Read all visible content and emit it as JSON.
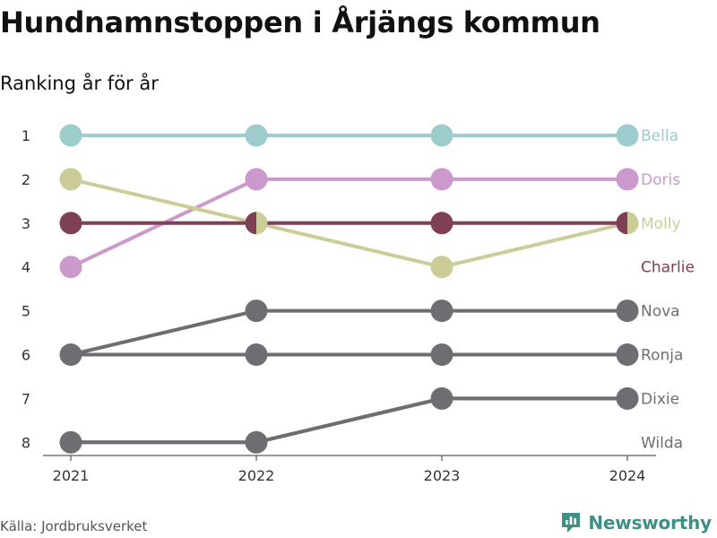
{
  "title": "Hundnamnstoppen i Årjängs kommun",
  "subtitle": "Ranking år för år",
  "source": "Källa: Jordbruksverket",
  "brand": {
    "name": "Newsworthy",
    "icon": "bar-chart-logo-icon",
    "color": "#3f8f86"
  },
  "chart_data": {
    "type": "line",
    "title": "Hundnamnstoppen i Årjängs kommun",
    "subtitle": "Ranking år för år",
    "x": [
      "2021",
      "2022",
      "2023",
      "2024"
    ],
    "y_ticks": [
      1,
      2,
      3,
      4,
      5,
      6,
      7,
      8
    ],
    "ylim": [
      1,
      8
    ],
    "y_inverted": true,
    "grid": false,
    "legend": "end-labels-right",
    "series": [
      {
        "name": "Bella",
        "color": "#9ccccc",
        "values": [
          1,
          1,
          1,
          1
        ]
      },
      {
        "name": "Doris",
        "color": "#cc99cc",
        "values": [
          4,
          2,
          2,
          2
        ]
      },
      {
        "name": "Molly",
        "color": "#cccc99",
        "values": [
          2,
          3,
          4,
          3
        ]
      },
      {
        "name": "Charlie",
        "color": "#7f3f55",
        "values": [
          3,
          3,
          3,
          3
        ]
      },
      {
        "name": "Nova",
        "color": "#6e6e72",
        "values": [
          6,
          5,
          5,
          5
        ]
      },
      {
        "name": "Ronja",
        "color": "#6e6e72",
        "values": [
          6,
          6,
          6,
          6
        ]
      },
      {
        "name": "Dixie",
        "color": "#6e6e72",
        "values": [
          8,
          8,
          7,
          7
        ]
      },
      {
        "name": "Wilda",
        "color": "#6e6e72",
        "values": [
          8,
          8,
          7,
          7
        ]
      }
    ],
    "end_labels": [
      {
        "name": "Bella",
        "rank": 1,
        "color": "#9ccccc"
      },
      {
        "name": "Doris",
        "rank": 2,
        "color": "#cc99cc"
      },
      {
        "name": "Molly",
        "rank": 3,
        "color": "#cccc99"
      },
      {
        "name": "Charlie",
        "rank": 4,
        "color": "#7f3f55"
      },
      {
        "name": "Nova",
        "rank": 5,
        "color": "#6e6e72"
      },
      {
        "name": "Ronja",
        "rank": 6,
        "color": "#6e6e72"
      },
      {
        "name": "Dixie",
        "rank": 7,
        "color": "#6e6e72"
      },
      {
        "name": "Wilda",
        "rank": 8,
        "color": "#6e6e72"
      }
    ]
  }
}
